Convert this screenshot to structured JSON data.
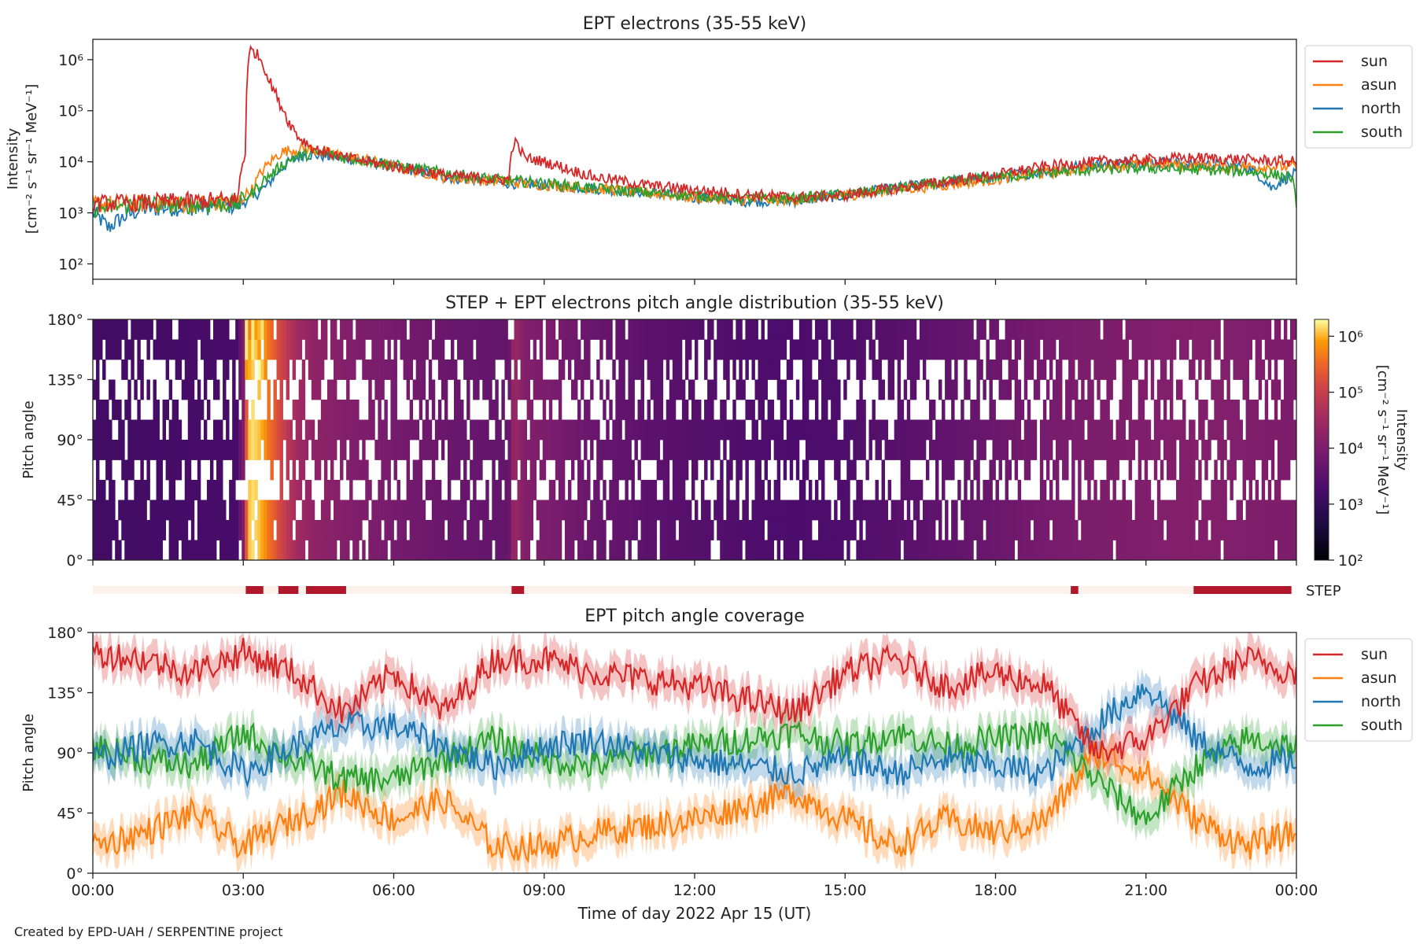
{
  "figure": {
    "credit": "Created by EPD-UAH / SERPENTINE project",
    "xlabel": "Time of day 2022 Apr 15 (UT)",
    "xticks": [
      "00:00",
      "03:00",
      "06:00",
      "09:00",
      "12:00",
      "15:00",
      "18:00",
      "21:00",
      "00:00"
    ]
  },
  "chart_data": [
    {
      "type": "line",
      "title": "EPT electrons (35-55 keV)",
      "ylabel_line1": "Intensity",
      "ylabel_line2": "[cm⁻² s⁻¹ sr⁻¹ MeV⁻¹]",
      "yscale": "log",
      "ylim": [
        50,
        2500000
      ],
      "yticks": [
        "10²",
        "10³",
        "10⁴",
        "10⁵",
        "10⁶"
      ],
      "xlim_hours": [
        0,
        24
      ],
      "legend_position": "outside-right-top",
      "series": [
        {
          "name": "sun",
          "color": "#d62728",
          "points": [
            [
              0,
              1500
            ],
            [
              1,
              1600
            ],
            [
              2,
              1700
            ],
            [
              2.9,
              1800
            ],
            [
              3.05,
              15000
            ],
            [
              3.15,
              1600000
            ],
            [
              3.3,
              1200000
            ],
            [
              3.5,
              400000
            ],
            [
              3.7,
              150000
            ],
            [
              3.9,
              60000
            ],
            [
              4.1,
              30000
            ],
            [
              4.4,
              18000
            ],
            [
              5,
              12000
            ],
            [
              6,
              8000
            ],
            [
              7,
              5500
            ],
            [
              8,
              4500
            ],
            [
              8.3,
              4500
            ],
            [
              8.4,
              25000
            ],
            [
              8.6,
              12000
            ],
            [
              9,
              10000
            ],
            [
              9.5,
              7000
            ],
            [
              10,
              5000
            ],
            [
              11,
              3500
            ],
            [
              12,
              2800
            ],
            [
              13,
              2300
            ],
            [
              14,
              2000
            ],
            [
              15,
              2200
            ],
            [
              16,
              3000
            ],
            [
              17,
              4000
            ],
            [
              18,
              5500
            ],
            [
              19,
              8000
            ],
            [
              20,
              10000
            ],
            [
              21,
              11000
            ],
            [
              22,
              12000
            ],
            [
              23,
              11000
            ],
            [
              24,
              10000
            ]
          ]
        },
        {
          "name": "asun",
          "color": "#ff7f0e",
          "points": [
            [
              0,
              1500
            ],
            [
              1,
              1500
            ],
            [
              2,
              1500
            ],
            [
              2.9,
              1600
            ],
            [
              3.2,
              3000
            ],
            [
              3.5,
              9000
            ],
            [
              3.8,
              16000
            ],
            [
              4.2,
              18000
            ],
            [
              5,
              13000
            ],
            [
              6,
              8000
            ],
            [
              7,
              5000
            ],
            [
              8,
              4200
            ],
            [
              9,
              3500
            ],
            [
              10,
              3000
            ],
            [
              11,
              2500
            ],
            [
              12,
              2000
            ],
            [
              13,
              1800
            ],
            [
              14,
              1800
            ],
            [
              15,
              2200
            ],
            [
              16,
              2800
            ],
            [
              17,
              3500
            ],
            [
              18,
              4500
            ],
            [
              19,
              6000
            ],
            [
              20,
              8000
            ],
            [
              21,
              9000
            ],
            [
              22,
              8500
            ],
            [
              23,
              8000
            ],
            [
              24,
              8000
            ]
          ]
        },
        {
          "name": "north",
          "color": "#1f77b4",
          "points": [
            [
              0,
              1000
            ],
            [
              0.3,
              500
            ],
            [
              1,
              1200
            ],
            [
              2,
              1300
            ],
            [
              2.9,
              1400
            ],
            [
              3.2,
              2000
            ],
            [
              3.5,
              3500
            ],
            [
              3.8,
              8000
            ],
            [
              4.2,
              14000
            ],
            [
              5,
              12000
            ],
            [
              6,
              8000
            ],
            [
              7,
              5000
            ],
            [
              8,
              4000
            ],
            [
              9,
              3500
            ],
            [
              10,
              3000
            ],
            [
              11,
              2500
            ],
            [
              12,
              2000
            ],
            [
              13,
              1700
            ],
            [
              14,
              1700
            ],
            [
              15,
              2200
            ],
            [
              16,
              3000
            ],
            [
              17,
              4000
            ],
            [
              18,
              5000
            ],
            [
              19,
              6500
            ],
            [
              20,
              9000
            ],
            [
              21,
              10000
            ],
            [
              22,
              9000
            ],
            [
              23,
              8000
            ],
            [
              23.5,
              3000
            ],
            [
              24,
              6000
            ]
          ]
        },
        {
          "name": "south",
          "color": "#2ca02c",
          "points": [
            [
              0,
              1200
            ],
            [
              1,
              1500
            ],
            [
              2,
              1400
            ],
            [
              2.9,
              1500
            ],
            [
              3.2,
              2500
            ],
            [
              3.6,
              6000
            ],
            [
              4,
              12000
            ],
            [
              4.5,
              15000
            ],
            [
              5,
              12000
            ],
            [
              6,
              8500
            ],
            [
              7,
              6000
            ],
            [
              8,
              4500
            ],
            [
              9,
              3800
            ],
            [
              10,
              3000
            ],
            [
              11,
              2500
            ],
            [
              12,
              2200
            ],
            [
              13,
              1900
            ],
            [
              14,
              1900
            ],
            [
              15,
              2300
            ],
            [
              16,
              3000
            ],
            [
              17,
              4000
            ],
            [
              18,
              5000
            ],
            [
              19,
              6000
            ],
            [
              20,
              7000
            ],
            [
              21,
              7500
            ],
            [
              22,
              7000
            ],
            [
              23,
              6500
            ],
            [
              23.9,
              5000
            ],
            [
              24,
              1000
            ]
          ]
        }
      ]
    },
    {
      "type": "heatmap",
      "title": "STEP + EPT electrons pitch angle distribution (35-55 keV)",
      "ylabel": "Pitch angle",
      "ylim": [
        0,
        180
      ],
      "yticks": [
        "0°",
        "45°",
        "90°",
        "135°",
        "180°"
      ],
      "colorbar": {
        "colormap": "inferno",
        "scale": "log",
        "range": [
          100,
          2000000
        ],
        "ticks": [
          "10²",
          "10³",
          "10⁴",
          "10⁵",
          "10⁶"
        ],
        "label_line1": "Intensity",
        "label_line2": "[cm⁻² s⁻¹ sr⁻¹ MeV⁻¹]"
      },
      "step_bar": {
        "label": "STEP",
        "active_hours": [
          [
            3.05,
            3.4
          ],
          [
            3.7,
            4.1
          ],
          [
            4.25,
            5.05
          ],
          [
            8.35,
            8.6
          ],
          [
            19.5,
            19.65
          ],
          [
            21.95,
            23.9
          ]
        ]
      }
    },
    {
      "type": "line",
      "title": "EPT pitch angle coverage",
      "ylabel": "Pitch angle",
      "ylim": [
        0,
        180
      ],
      "yticks": [
        "0°",
        "45°",
        "90°",
        "135°",
        "180°"
      ],
      "legend_position": "outside-right-top",
      "series": [
        {
          "name": "sun",
          "color": "#d62728",
          "points": [
            [
              0,
              165
            ],
            [
              1,
              160
            ],
            [
              2,
              150
            ],
            [
              3,
              165
            ],
            [
              4,
              150
            ],
            [
              5,
              120
            ],
            [
              6,
              150
            ],
            [
              7,
              120
            ],
            [
              8,
              160
            ],
            [
              9,
              160
            ],
            [
              10,
              150
            ],
            [
              11,
              145
            ],
            [
              12,
              140
            ],
            [
              13,
              130
            ],
            [
              14,
              120
            ],
            [
              15,
              150
            ],
            [
              16,
              160
            ],
            [
              17,
              140
            ],
            [
              18,
              150
            ],
            [
              19,
              140
            ],
            [
              20,
              90
            ],
            [
              21,
              100
            ],
            [
              22,
              140
            ],
            [
              23,
              160
            ],
            [
              24,
              150
            ]
          ]
        },
        {
          "name": "asun",
          "color": "#ff7f0e",
          "points": [
            [
              0,
              20
            ],
            [
              1,
              30
            ],
            [
              2,
              45
            ],
            [
              3,
              20
            ],
            [
              4,
              40
            ],
            [
              5,
              60
            ],
            [
              6,
              40
            ],
            [
              7,
              55
            ],
            [
              8,
              20
            ],
            [
              9,
              20
            ],
            [
              10,
              30
            ],
            [
              11,
              35
            ],
            [
              12,
              40
            ],
            [
              13,
              50
            ],
            [
              14,
              60
            ],
            [
              15,
              40
            ],
            [
              16,
              20
            ],
            [
              17,
              40
            ],
            [
              18,
              30
            ],
            [
              19,
              40
            ],
            [
              20,
              90
            ],
            [
              21,
              75
            ],
            [
              22,
              40
            ],
            [
              23,
              20
            ],
            [
              24,
              30
            ]
          ]
        },
        {
          "name": "north",
          "color": "#1f77b4",
          "points": [
            [
              0,
              85
            ],
            [
              1,
              95
            ],
            [
              2,
              100
            ],
            [
              3,
              75
            ],
            [
              4,
              95
            ],
            [
              5,
              110
            ],
            [
              6,
              110
            ],
            [
              7,
              95
            ],
            [
              8,
              80
            ],
            [
              9,
              95
            ],
            [
              10,
              100
            ],
            [
              11,
              90
            ],
            [
              12,
              85
            ],
            [
              13,
              80
            ],
            [
              14,
              75
            ],
            [
              15,
              85
            ],
            [
              16,
              75
            ],
            [
              17,
              85
            ],
            [
              18,
              80
            ],
            [
              19,
              75
            ],
            [
              20,
              110
            ],
            [
              21,
              140
            ],
            [
              22,
              100
            ],
            [
              23,
              80
            ],
            [
              24,
              85
            ]
          ]
        },
        {
          "name": "south",
          "color": "#2ca02c",
          "points": [
            [
              0,
              95
            ],
            [
              1,
              85
            ],
            [
              2,
              80
            ],
            [
              3,
              105
            ],
            [
              4,
              85
            ],
            [
              5,
              70
            ],
            [
              6,
              70
            ],
            [
              7,
              85
            ],
            [
              8,
              100
            ],
            [
              9,
              85
            ],
            [
              10,
              80
            ],
            [
              11,
              90
            ],
            [
              12,
              95
            ],
            [
              13,
              100
            ],
            [
              14,
              105
            ],
            [
              15,
              95
            ],
            [
              16,
              105
            ],
            [
              17,
              95
            ],
            [
              18,
              100
            ],
            [
              19,
              105
            ],
            [
              20,
              70
            ],
            [
              21,
              40
            ],
            [
              22,
              80
            ],
            [
              23,
              100
            ],
            [
              24,
              95
            ]
          ]
        }
      ]
    }
  ]
}
